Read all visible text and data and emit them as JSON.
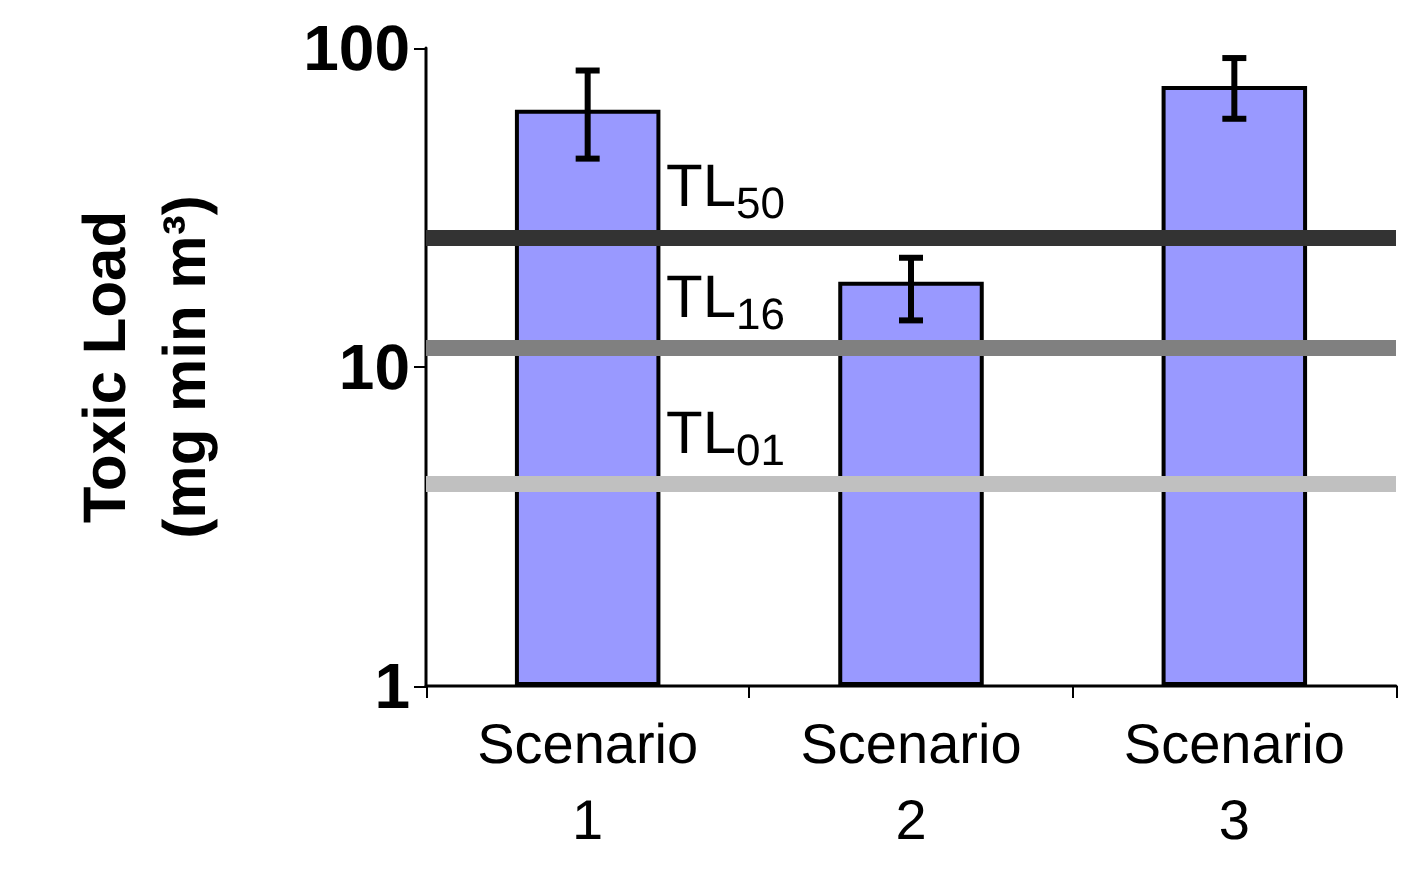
{
  "chart_data": {
    "type": "bar",
    "ylabel": "Toxic Load\n(mg min m³)",
    "categories": [
      "Scenario\n1",
      "Scenario\n2",
      "Scenario\n3"
    ],
    "values": [
      64,
      18.5,
      76
    ],
    "color": "#9999ff",
    "errors": [
      [
        45,
        85
      ],
      [
        14,
        22
      ],
      [
        60,
        93
      ]
    ],
    "log": true,
    "ylim": [
      1,
      100
    ],
    "yticks": [
      1,
      10,
      100
    ],
    "grid": false,
    "ref_lines": [
      {
        "axis": "y",
        "value": 25.5,
        "label": "TL$_{50}$",
        "color": "#333333"
      },
      {
        "axis": "y",
        "value": 11.5,
        "label": "TL$_{16}$",
        "color": "#808080"
      },
      {
        "axis": "y",
        "value": 4.3,
        "label": "TL$_{01}$",
        "color": "#c0c0c0"
      }
    ]
  }
}
